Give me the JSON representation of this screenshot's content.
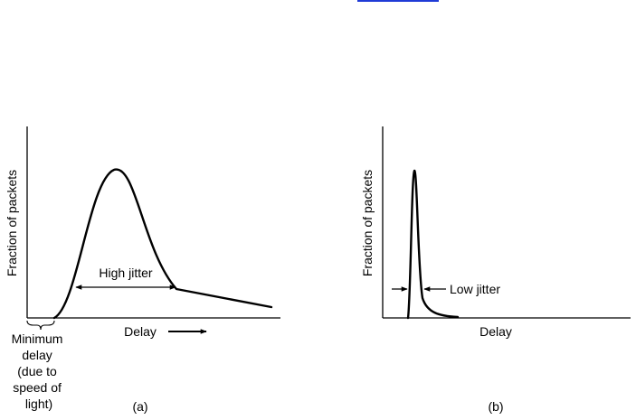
{
  "colors": {
    "link": "#1f3bd6",
    "ink": "#000000",
    "background": "#ffffff"
  },
  "panel_a": {
    "ylabel": "Fraction of packets",
    "xlabel": "Delay",
    "jitter_label": "High jitter",
    "min_delay_label": [
      "Minimum",
      "delay",
      "(due to",
      "speed of",
      "light)"
    ],
    "caption": "(a)"
  },
  "panel_b": {
    "ylabel": "Fraction of packets",
    "xlabel": "Delay",
    "jitter_label": "Low jitter",
    "caption": "(b)"
  }
}
